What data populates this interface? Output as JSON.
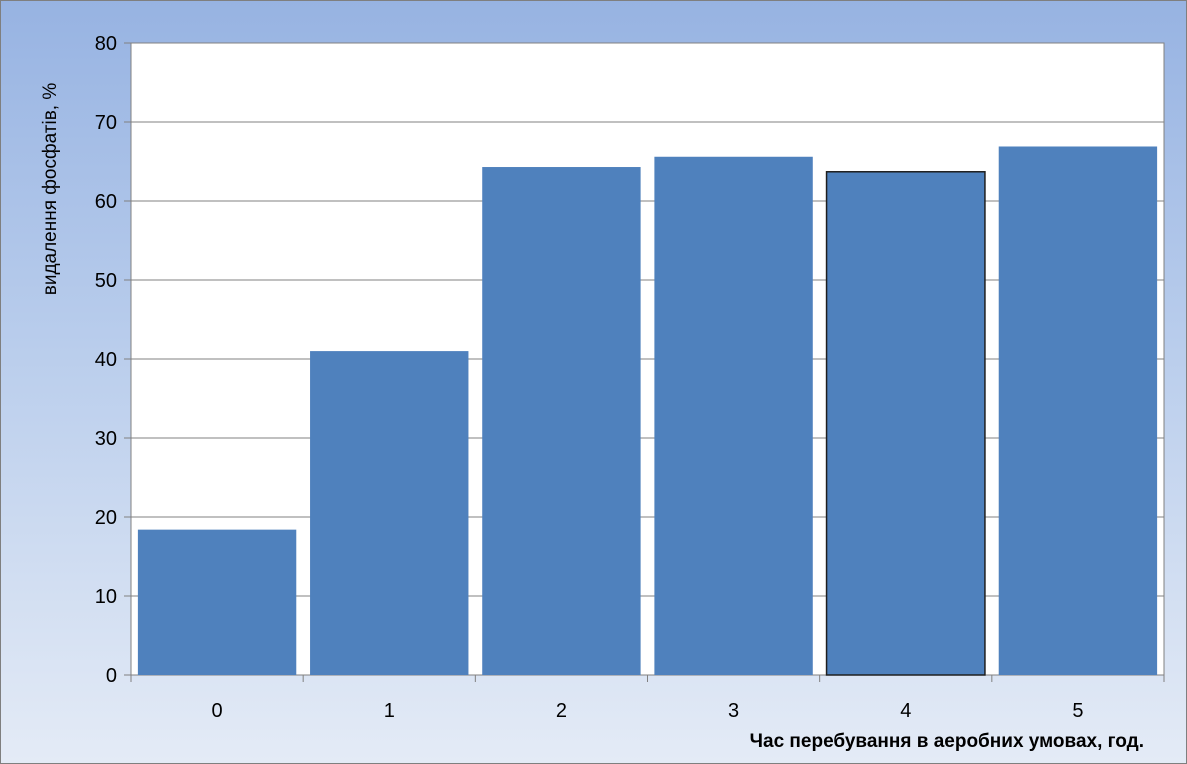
{
  "chart_data": {
    "type": "bar",
    "title": "",
    "xlabel": "Час перебування в аеробних умовах, год.",
    "ylabel": "видалення фосфатів,  %",
    "categories": [
      "0",
      "1",
      "2",
      "3",
      "4",
      "5"
    ],
    "values": [
      18.4,
      41.0,
      64.3,
      65.6,
      63.7,
      66.9
    ],
    "ylim": [
      0,
      80
    ],
    "yticks": [
      "0",
      "10",
      "20",
      "30",
      "40",
      "50",
      "60",
      "70",
      "80"
    ],
    "grid": true,
    "legend": "none",
    "colors": {
      "bar": "#4f81bd",
      "bar_highlight_outline": "#1f1f1f",
      "gridline": "#808080",
      "plot_background": "#ffffff"
    },
    "highlighted_category": "4"
  }
}
